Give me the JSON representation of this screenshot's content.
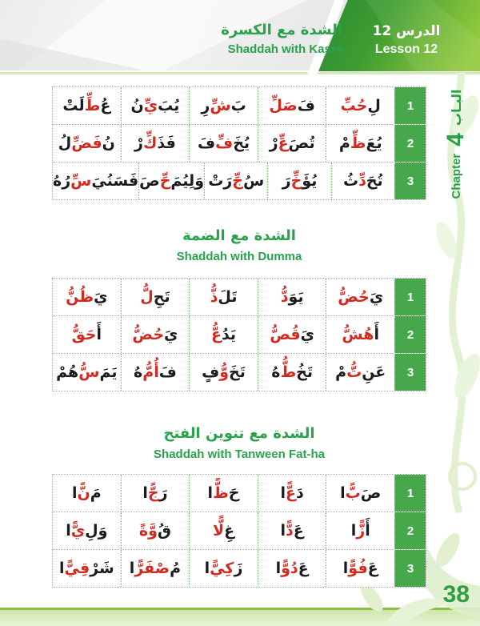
{
  "page": {
    "lesson_ar": "الدرس 12",
    "lesson_en": "Lesson 12",
    "chapter_en": "Chapter",
    "chapter_num": "4",
    "chapter_ar": "البـاب",
    "page_number": "38"
  },
  "colors": {
    "accent_green": "#2aa14b",
    "badge_green": "#47a84b",
    "word_red": "#d02a21",
    "word_black": "#1b1b1b",
    "footer_line_green": "#8cc043",
    "banner_gradient_start": "#2e8f33",
    "banner_gradient_end": "#94ca3e"
  },
  "sections": [
    {
      "title_ar": "الشدة مع الكسرة",
      "title_en": "Shaddah with Kasra",
      "rows": [
        {
          "num": "1",
          "cells": [
            [
              {
                "t": "لِ",
                "c": "k"
              },
              {
                "t": "حُبِّ",
                "c": "r"
              }
            ],
            [
              {
                "t": "فَ",
                "c": "k"
              },
              {
                "t": "صَلِّ",
                "c": "r"
              }
            ],
            [
              {
                "t": "بَ",
                "c": "k"
              },
              {
                "t": "شِّ",
                "c": "r"
              },
              {
                "t": "رِ",
                "c": "k"
              }
            ],
            [
              {
                "t": "يُبَ",
                "c": "k"
              },
              {
                "t": "يِّ",
                "c": "r"
              },
              {
                "t": "نُ",
                "c": "k"
              }
            ],
            [
              {
                "t": "عُ",
                "c": "k"
              },
              {
                "t": "طِّ",
                "c": "r"
              },
              {
                "t": "لَتْ",
                "c": "k"
              }
            ]
          ]
        },
        {
          "num": "2",
          "cells": [
            [
              {
                "t": "يُعَ",
                "c": "k"
              },
              {
                "t": "ظِّ",
                "c": "r"
              },
              {
                "t": "مْ",
                "c": "k"
              }
            ],
            [
              {
                "t": "تُصَ",
                "c": "k"
              },
              {
                "t": "عِّ",
                "c": "r"
              },
              {
                "t": "رْ",
                "c": "k"
              }
            ],
            [
              {
                "t": "يُخَ",
                "c": "k"
              },
              {
                "t": "فِّ",
                "c": "r"
              },
              {
                "t": "فَ",
                "c": "k"
              }
            ],
            [
              {
                "t": "فَذَ",
                "c": "k"
              },
              {
                "t": "كِّ",
                "c": "r"
              },
              {
                "t": "رْ",
                "c": "k"
              }
            ],
            [
              {
                "t": "نُ",
                "c": "k"
              },
              {
                "t": "فَضِّ",
                "c": "r"
              },
              {
                "t": "لُ",
                "c": "k"
              }
            ]
          ]
        },
        {
          "num": "3",
          "cells": [
            [
              {
                "t": "تُحَ",
                "c": "k"
              },
              {
                "t": "دِّ",
                "c": "r"
              },
              {
                "t": "ثُ",
                "c": "k"
              }
            ],
            [
              {
                "t": "يُؤَ",
                "c": "k"
              },
              {
                "t": "خِّ",
                "c": "r"
              },
              {
                "t": "رَ",
                "c": "k"
              }
            ],
            [
              {
                "t": "سُ",
                "c": "k"
              },
              {
                "t": "جِّ",
                "c": "r"
              },
              {
                "t": "رَتْ",
                "c": "k"
              }
            ],
            [
              {
                "t": "وَلِيُمَ",
                "c": "k"
              },
              {
                "t": "حِّ",
                "c": "r"
              },
              {
                "t": "صَ",
                "c": "k"
              }
            ],
            [
              {
                "t": "فَسَنُيَ",
                "c": "k"
              },
              {
                "t": "سِّ",
                "c": "r"
              },
              {
                "t": "رُهُ",
                "c": "k"
              }
            ]
          ]
        }
      ]
    },
    {
      "title_ar": "الشدة مع الضمة",
      "title_en": "Shaddah with Dumma",
      "rows": [
        {
          "num": "1",
          "cells": [
            [
              {
                "t": "يَ",
                "c": "k"
              },
              {
                "t": "حُضُّ",
                "c": "r"
              }
            ],
            [
              {
                "t": "يَوَ",
                "c": "k"
              },
              {
                "t": "دُّ",
                "c": "r"
              }
            ],
            [
              {
                "t": "تَلَ",
                "c": "k"
              },
              {
                "t": "ذُّ",
                "c": "r"
              }
            ],
            [
              {
                "t": "تَحِ",
                "c": "k"
              },
              {
                "t": "لُّ",
                "c": "r"
              }
            ],
            [
              {
                "t": "يَ",
                "c": "k"
              },
              {
                "t": "ظُنُّ",
                "c": "r"
              }
            ]
          ]
        },
        {
          "num": "2",
          "cells": [
            [
              {
                "t": "أَ",
                "c": "k"
              },
              {
                "t": "هُشُّ",
                "c": "r"
              }
            ],
            [
              {
                "t": "يَ",
                "c": "k"
              },
              {
                "t": "قُصُّ",
                "c": "r"
              }
            ],
            [
              {
                "t": "يَدُ",
                "c": "k"
              },
              {
                "t": "عُّ",
                "c": "r"
              }
            ],
            [
              {
                "t": "يَ",
                "c": "k"
              },
              {
                "t": "حُضُّ",
                "c": "r"
              }
            ],
            [
              {
                "t": "أَ",
                "c": "k"
              },
              {
                "t": "حَقُّ",
                "c": "r"
              }
            ]
          ]
        },
        {
          "num": "3",
          "cells": [
            [
              {
                "t": "عَنِ",
                "c": "k"
              },
              {
                "t": "تُّ",
                "c": "r"
              },
              {
                "t": "مْ",
                "c": "k"
              }
            ],
            [
              {
                "t": "تَخُ",
                "c": "k"
              },
              {
                "t": "طُّ",
                "c": "r"
              },
              {
                "t": "هُ",
                "c": "k"
              }
            ],
            [
              {
                "t": "تَخَ",
                "c": "k"
              },
              {
                "t": "وُّ",
                "c": "r"
              },
              {
                "t": "فٍ",
                "c": "k"
              }
            ],
            [
              {
                "t": "فَ",
                "c": "k"
              },
              {
                "t": "أُمُّ",
                "c": "r"
              },
              {
                "t": "هُ",
                "c": "k"
              }
            ],
            [
              {
                "t": "يَمَ",
                "c": "k"
              },
              {
                "t": "سُّ",
                "c": "r"
              },
              {
                "t": "هُمْ",
                "c": "k"
              }
            ]
          ]
        }
      ]
    },
    {
      "title_ar": "الشدة مع تنوين الفتح",
      "title_en": "Shaddah with Tanween Fat-ha",
      "rows": [
        {
          "num": "1",
          "cells": [
            [
              {
                "t": "صَ",
                "c": "k"
              },
              {
                "t": "بًّ",
                "c": "r"
              },
              {
                "t": "ا",
                "c": "k"
              }
            ],
            [
              {
                "t": "دَ",
                "c": "k"
              },
              {
                "t": "عًّ",
                "c": "r"
              },
              {
                "t": "ا",
                "c": "k"
              }
            ],
            [
              {
                "t": "حَ",
                "c": "k"
              },
              {
                "t": "ظًّ",
                "c": "r"
              },
              {
                "t": "ا",
                "c": "k"
              }
            ],
            [
              {
                "t": "رَ",
                "c": "k"
              },
              {
                "t": "جًّ",
                "c": "r"
              },
              {
                "t": "ا",
                "c": "k"
              }
            ],
            [
              {
                "t": "مَ",
                "c": "k"
              },
              {
                "t": "نًّ",
                "c": "r"
              },
              {
                "t": "ا",
                "c": "k"
              }
            ]
          ]
        },
        {
          "num": "2",
          "cells": [
            [
              {
                "t": "أَ",
                "c": "k"
              },
              {
                "t": "زًّ",
                "c": "r"
              },
              {
                "t": "ا",
                "c": "k"
              }
            ],
            [
              {
                "t": "عَ",
                "c": "k"
              },
              {
                "t": "دًّ",
                "c": "r"
              },
              {
                "t": "ا",
                "c": "k"
              }
            ],
            [
              {
                "t": "غِ",
                "c": "k"
              },
              {
                "t": "لًّا",
                "c": "r"
              }
            ],
            [
              {
                "t": "قُ",
                "c": "k"
              },
              {
                "t": "وَّةً",
                "c": "r"
              }
            ],
            [
              {
                "t": "وَلِ",
                "c": "k"
              },
              {
                "t": "يًّ",
                "c": "r"
              },
              {
                "t": "ا",
                "c": "k"
              }
            ]
          ]
        },
        {
          "num": "3",
          "cells": [
            [
              {
                "t": "عَ",
                "c": "k"
              },
              {
                "t": "فُوًّ",
                "c": "r"
              },
              {
                "t": "ا",
                "c": "k"
              }
            ],
            [
              {
                "t": "عَ",
                "c": "k"
              },
              {
                "t": "دُوًّ",
                "c": "r"
              },
              {
                "t": "ا",
                "c": "k"
              }
            ],
            [
              {
                "t": "زَ",
                "c": "k"
              },
              {
                "t": "كِيًّ",
                "c": "r"
              },
              {
                "t": "ا",
                "c": "k"
              }
            ],
            [
              {
                "t": "مُ",
                "c": "k"
              },
              {
                "t": "صْفَرًّ",
                "c": "r"
              },
              {
                "t": "ا",
                "c": "k"
              }
            ],
            [
              {
                "t": "شَرْ",
                "c": "k"
              },
              {
                "t": "قِيًّ",
                "c": "r"
              },
              {
                "t": "ا",
                "c": "k"
              }
            ]
          ]
        }
      ]
    }
  ]
}
